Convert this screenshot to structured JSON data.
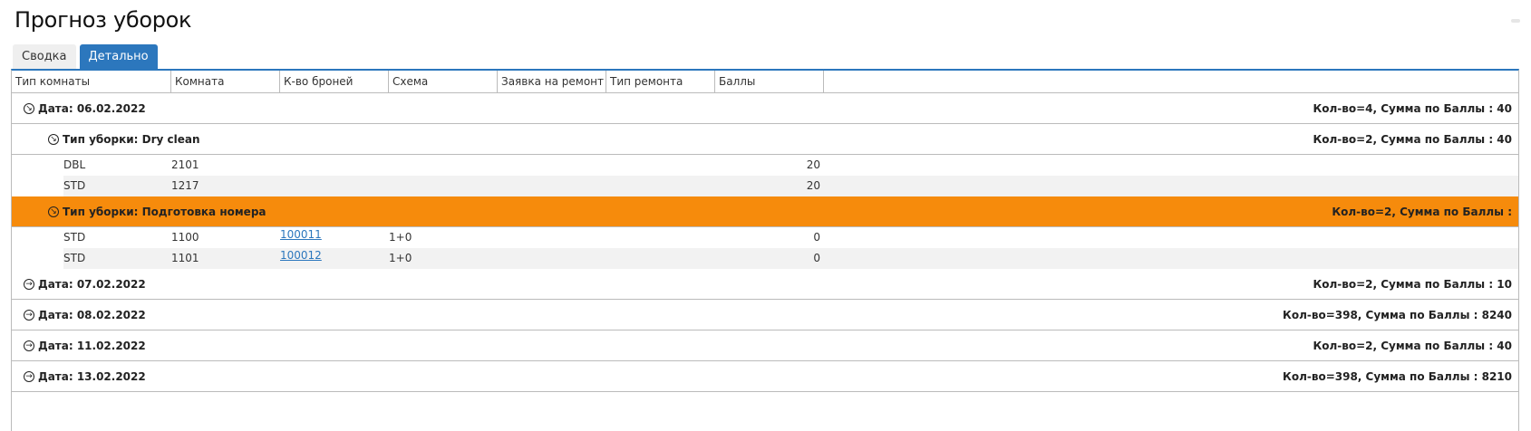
{
  "title": "Прогноз уборок",
  "tabs": [
    {
      "label": "Сводка",
      "active": false
    },
    {
      "label": "Детально",
      "active": true
    }
  ],
  "columns": [
    "Тип комнаты",
    "Комната",
    "К-во броней",
    "Схема",
    "Заявка на ремонт",
    "Тип ремонта",
    "Баллы"
  ],
  "highlight_color": "#f68b0c",
  "accent_color": "#2c77bd",
  "groups": [
    {
      "label": "Дата: 06.02.2022",
      "summary": "Кол-во=4,  Сумма по Баллы : 40",
      "expanded": true,
      "icon": "collapse-circle-icon",
      "subgroups": [
        {
          "label": "Тип уборки: Dry clean",
          "summary": "Кол-во=2,  Сумма по Баллы : 40",
          "highlighted": false,
          "rows": [
            {
              "room_type": "DBL",
              "room": "2101",
              "bookings": "",
              "scheme": "",
              "repair_request": "",
              "repair_type": "",
              "score": "20"
            },
            {
              "room_type": "STD",
              "room": "1217",
              "bookings": "",
              "scheme": "",
              "repair_request": "",
              "repair_type": "",
              "score": "20"
            }
          ]
        },
        {
          "label": "Тип уборки: Подготовка номера",
          "summary": "Кол-во=2,  Сумма по Баллы :",
          "highlighted": true,
          "rows": [
            {
              "room_type": "STD",
              "room": "1100",
              "bookings": "100011",
              "scheme": "1+0",
              "repair_request": "",
              "repair_type": "",
              "score": "0"
            },
            {
              "room_type": "STD",
              "room": "1101",
              "bookings": "100012",
              "scheme": "1+0",
              "repair_request": "",
              "repair_type": "",
              "score": "0"
            }
          ]
        }
      ]
    },
    {
      "label": "Дата: 07.02.2022",
      "summary": "Кол-во=2,  Сумма по Баллы : 10",
      "expanded": false
    },
    {
      "label": "Дата: 08.02.2022",
      "summary": "Кол-во=398,  Сумма по Баллы : 8240",
      "expanded": false
    },
    {
      "label": "Дата: 11.02.2022",
      "summary": "Кол-во=2,  Сумма по Баллы : 40",
      "expanded": false
    },
    {
      "label": "Дата: 13.02.2022",
      "summary": "Кол-во=398,  Сумма по Баллы : 8210",
      "expanded": false
    }
  ]
}
